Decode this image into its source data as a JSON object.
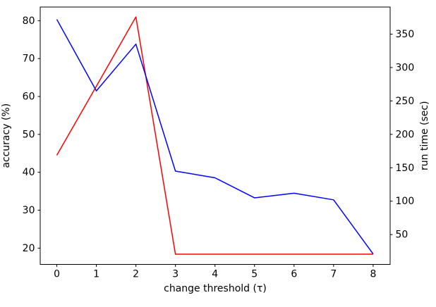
{
  "figure": {
    "background": "#ffffff"
  },
  "chart_data": {
    "type": "line",
    "title": "",
    "xlabel": "change threshold (τ)",
    "x": [
      0,
      1,
      2,
      3,
      4,
      5,
      6,
      7,
      8
    ],
    "xticks": [
      "0",
      "1",
      "2",
      "3",
      "4",
      "5",
      "6",
      "7",
      "8"
    ],
    "xlim": [
      -0.42,
      8.43
    ],
    "grid": false,
    "legend": "none",
    "series": [
      {
        "name": "accuracy",
        "axis": "left",
        "color": "#ff0000",
        "values": [
          44.5,
          62.7,
          81.0,
          18.4,
          18.4,
          18.4,
          18.4,
          18.4,
          18.4
        ]
      },
      {
        "name": "run time",
        "axis": "right",
        "color": "#0000ff",
        "values": [
          372,
          265,
          335,
          145,
          135,
          105,
          112,
          102,
          21
        ]
      }
    ],
    "left_axis": {
      "label": "accuracy (%)",
      "color": "#ff0000",
      "ticks": [
        20,
        30,
        40,
        50,
        60,
        70,
        80
      ],
      "lim": [
        15.7,
        83.6
      ]
    },
    "right_axis": {
      "label": "run time (sec)",
      "color": "#0000ff",
      "ticks": [
        50,
        100,
        150,
        200,
        250,
        300,
        350
      ],
      "lim": [
        5.4,
        390.5
      ]
    },
    "spine_color": "#000000",
    "tick_color": "#000000"
  }
}
